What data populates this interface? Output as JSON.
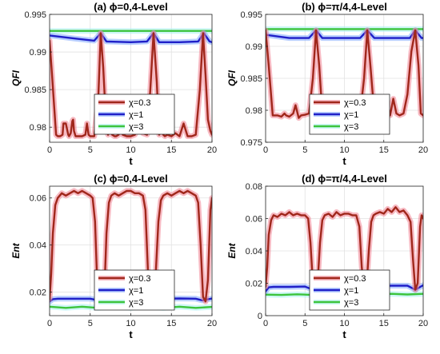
{
  "colors": {
    "chi03": "#a0271b",
    "chi03_glow": "#f08090",
    "chi1": "#1f1fc8",
    "chi1_glow": "#7fa8ff",
    "chi3": "#3cc43c",
    "chi3_glow": "#a8f0f0"
  },
  "chart_data": [
    {
      "type": "line",
      "panel": "a",
      "title": "(a) ϕ=0,4-Level",
      "xlabel": "t",
      "ylabel": "QFI",
      "xlim": [
        0,
        20
      ],
      "ylim": [
        0.978,
        0.995
      ],
      "xticks": [
        0,
        5,
        10,
        15,
        20
      ],
      "yticks": [
        0.98,
        0.985,
        0.99,
        0.995
      ],
      "ytick_labels": [
        "0.98",
        "0.985",
        "0.99",
        "0.995"
      ],
      "grid": true,
      "legend": "lower-center",
      "series": [
        {
          "name": "χ=0.3",
          "key": "chi03",
          "x": [
            0,
            0.3,
            0.8,
            1.0,
            1.3,
            1.6,
            1.7,
            2.0,
            2.3,
            2.4,
            2.6,
            2.8,
            2.9,
            3.0,
            3.2,
            3.5,
            4.0,
            4.4,
            4.6,
            4.8,
            5.0,
            5.5,
            6.0,
            6.3,
            6.6,
            7.0,
            7.2,
            7.5,
            7.7,
            8.0,
            8.2,
            8.5,
            8.7,
            9.0,
            9.5,
            10.0,
            10.5,
            11.0,
            11.5,
            12.0,
            12.4,
            12.8,
            13.2,
            13.5,
            13.7,
            14.0,
            14.2,
            14.5,
            15.0,
            15.5,
            16.0,
            16.5,
            17.0,
            17.5,
            18.0,
            18.5,
            18.9,
            19.2,
            19.5,
            19.8,
            20.0
          ],
          "y": [
            0.9915,
            0.987,
            0.979,
            0.9788,
            0.9788,
            0.979,
            0.9805,
            0.9805,
            0.979,
            0.9788,
            0.9792,
            0.9808,
            0.981,
            0.9795,
            0.9788,
            0.9788,
            0.9788,
            0.979,
            0.9805,
            0.979,
            0.9788,
            0.9788,
            0.984,
            0.9925,
            0.988,
            0.9795,
            0.979,
            0.9805,
            0.979,
            0.9788,
            0.9788,
            0.979,
            0.9812,
            0.979,
            0.9788,
            0.9788,
            0.979,
            0.9805,
            0.9792,
            0.979,
            0.985,
            0.9925,
            0.986,
            0.979,
            0.9805,
            0.979,
            0.9788,
            0.979,
            0.9788,
            0.9792,
            0.9788,
            0.9805,
            0.9788,
            0.9788,
            0.979,
            0.985,
            0.9925,
            0.987,
            0.981,
            0.9795,
            0.979
          ]
        },
        {
          "name": "χ=1",
          "key": "chi1",
          "x": [
            0,
            3,
            5.5,
            6.3,
            7,
            10,
            12,
            12.8,
            13.5,
            16,
            18.3,
            19,
            19.7,
            20
          ],
          "y": [
            0.9922,
            0.9918,
            0.9915,
            0.9925,
            0.9914,
            0.9913,
            0.9914,
            0.9925,
            0.9913,
            0.9913,
            0.9914,
            0.9925,
            0.9914,
            0.9913
          ]
        },
        {
          "name": "χ=3",
          "key": "chi3",
          "x": [
            0,
            5,
            10,
            15,
            20
          ],
          "y": [
            0.9928,
            0.9928,
            0.9928,
            0.9928,
            0.9928
          ]
        }
      ]
    },
    {
      "type": "line",
      "panel": "b",
      "title": "(b) ϕ=π/4,4-Level",
      "xlabel": "t",
      "ylabel": "QFI",
      "xlim": [
        0,
        20
      ],
      "ylim": [
        0.975,
        0.995
      ],
      "xticks": [
        0,
        5,
        10,
        15,
        20
      ],
      "yticks": [
        0.975,
        0.98,
        0.985,
        0.99,
        0.995
      ],
      "ytick_labels": [
        "0.975",
        "0.98",
        "0.985",
        "0.99",
        "0.995"
      ],
      "grid": true,
      "legend": "lower-right",
      "series": [
        {
          "name": "χ=0.3",
          "key": "chi03",
          "x": [
            0,
            0.4,
            0.9,
            1.5,
            2.0,
            2.4,
            2.6,
            3.0,
            3.5,
            3.8,
            4.2,
            4.5,
            5.0,
            5.5,
            6.0,
            6.4,
            6.8,
            7.2,
            7.6,
            8.0,
            8.5,
            9.0,
            9.2,
            9.5,
            10.0,
            10.5,
            11.0,
            11.5,
            12.0,
            12.5,
            12.9,
            13.3,
            13.8,
            14.2,
            14.6,
            15.0,
            15.4,
            15.8,
            16.2,
            16.6,
            17.0,
            17.5,
            18.0,
            18.5,
            19.0,
            19.4,
            19.7,
            20.0
          ],
          "y": [
            0.9925,
            0.987,
            0.9792,
            0.9792,
            0.979,
            0.9795,
            0.9792,
            0.979,
            0.9795,
            0.9808,
            0.9788,
            0.9792,
            0.9793,
            0.9795,
            0.985,
            0.9925,
            0.987,
            0.9795,
            0.9792,
            0.9792,
            0.9805,
            0.9795,
            0.9812,
            0.9795,
            0.9792,
            0.9792,
            0.9808,
            0.9795,
            0.9795,
            0.985,
            0.9925,
            0.987,
            0.9795,
            0.9812,
            0.9792,
            0.9795,
            0.9815,
            0.9792,
            0.9818,
            0.9795,
            0.9792,
            0.9795,
            0.9825,
            0.9892,
            0.9925,
            0.987,
            0.9795,
            0.9792
          ]
        },
        {
          "name": "χ=1",
          "key": "chi1",
          "x": [
            0,
            3,
            5.5,
            6.4,
            7.2,
            10,
            12,
            12.9,
            13.8,
            16,
            18.3,
            19,
            19.8,
            20
          ],
          "y": [
            0.9918,
            0.9913,
            0.9913,
            0.9925,
            0.9913,
            0.9913,
            0.9913,
            0.9925,
            0.9913,
            0.9913,
            0.9913,
            0.9925,
            0.9913,
            0.9913
          ]
        },
        {
          "name": "χ=3",
          "key": "chi3",
          "x": [
            0,
            5,
            10,
            15,
            20
          ],
          "y": [
            0.9927,
            0.9927,
            0.9927,
            0.9927,
            0.9927
          ]
        }
      ]
    },
    {
      "type": "line",
      "panel": "c",
      "title": "(c) ϕ=0,4-Level",
      "xlabel": "t",
      "ylabel": "Ent",
      "xlim": [
        0,
        20
      ],
      "ylim": [
        0.01,
        0.065
      ],
      "xticks": [
        0,
        5,
        10,
        15,
        20
      ],
      "yticks": [
        0.02,
        0.04,
        0.06
      ],
      "ytick_labels": [
        "0.02",
        "0.04",
        "0.06"
      ],
      "grid": true,
      "legend": "lower-right",
      "series": [
        {
          "name": "χ=0.3",
          "key": "chi03",
          "x": [
            0,
            0.2,
            0.4,
            0.7,
            1.0,
            1.5,
            2.0,
            2.5,
            3.0,
            3.5,
            4.0,
            4.5,
            5.0,
            5.3,
            5.6,
            5.9,
            6.2,
            6.5,
            6.8,
            7.0,
            7.3,
            7.6,
            8.0,
            8.5,
            9.0,
            9.5,
            10.0,
            10.5,
            11.0,
            11.5,
            11.8,
            12.1,
            12.4,
            12.8,
            13.1,
            13.4,
            13.7,
            14.0,
            14.5,
            15.0,
            15.5,
            16.0,
            16.5,
            17.0,
            17.5,
            18.0,
            18.3,
            18.6,
            18.9,
            19.2,
            19.5,
            19.8,
            20.0
          ],
          "y": [
            0.017,
            0.028,
            0.045,
            0.057,
            0.06,
            0.062,
            0.061,
            0.062,
            0.063,
            0.062,
            0.063,
            0.062,
            0.061,
            0.06,
            0.05,
            0.02,
            0.016,
            0.017,
            0.025,
            0.045,
            0.058,
            0.061,
            0.062,
            0.061,
            0.062,
            0.063,
            0.063,
            0.062,
            0.062,
            0.061,
            0.055,
            0.03,
            0.017,
            0.016,
            0.03,
            0.05,
            0.059,
            0.061,
            0.062,
            0.061,
            0.062,
            0.063,
            0.062,
            0.063,
            0.062,
            0.061,
            0.058,
            0.04,
            0.018,
            0.016,
            0.025,
            0.055,
            0.06
          ]
        },
        {
          "name": "χ=1",
          "key": "chi1",
          "x": [
            0,
            0.4,
            1,
            3,
            5,
            6,
            6.5,
            8,
            10,
            12,
            12.7,
            14,
            16,
            18,
            18.8,
            20
          ],
          "y": [
            0.016,
            0.017,
            0.0172,
            0.0172,
            0.0172,
            0.0165,
            0.0172,
            0.0172,
            0.0173,
            0.017,
            0.0165,
            0.0172,
            0.0173,
            0.0172,
            0.0165,
            0.0173
          ]
        },
        {
          "name": "χ=3",
          "key": "chi3",
          "x": [
            0,
            2,
            4,
            6,
            8,
            10,
            12,
            14,
            16,
            18,
            20
          ],
          "y": [
            0.0138,
            0.0133,
            0.0138,
            0.0133,
            0.0138,
            0.0133,
            0.0138,
            0.0133,
            0.0138,
            0.0133,
            0.0137
          ]
        }
      ]
    },
    {
      "type": "line",
      "panel": "d",
      "title": "(d) ϕ=π/4,4-Level",
      "xlabel": "t",
      "ylabel": "Ent",
      "xlim": [
        0,
        20
      ],
      "ylim": [
        0,
        0.08
      ],
      "xticks": [
        0,
        5,
        10,
        15,
        20
      ],
      "yticks": [
        0,
        0.02,
        0.04,
        0.06,
        0.08
      ],
      "ytick_labels": [
        "0",
        "0.02",
        "0.04",
        "0.06",
        "0.08"
      ],
      "grid": true,
      "legend": "lower-right",
      "series": [
        {
          "name": "χ=0.3",
          "key": "chi03",
          "x": [
            0,
            0.2,
            0.4,
            0.7,
            1.0,
            1.5,
            2.0,
            2.5,
            3.0,
            3.5,
            4.0,
            4.5,
            5.0,
            5.4,
            5.7,
            6.0,
            6.3,
            6.6,
            6.9,
            7.2,
            7.5,
            8.0,
            8.5,
            9.0,
            9.5,
            10.0,
            10.5,
            11.0,
            11.5,
            11.9,
            12.2,
            12.5,
            12.8,
            13.1,
            13.4,
            13.7,
            14.0,
            14.5,
            15.0,
            15.5,
            16.0,
            16.5,
            17.0,
            17.5,
            18.0,
            18.4,
            18.7,
            19.0,
            19.3,
            19.6,
            19.8,
            20.0
          ],
          "y": [
            0.018,
            0.03,
            0.05,
            0.059,
            0.062,
            0.061,
            0.063,
            0.062,
            0.064,
            0.062,
            0.063,
            0.062,
            0.062,
            0.06,
            0.045,
            0.02,
            0.016,
            0.02,
            0.045,
            0.059,
            0.062,
            0.063,
            0.061,
            0.064,
            0.062,
            0.063,
            0.063,
            0.062,
            0.062,
            0.055,
            0.03,
            0.016,
            0.017,
            0.04,
            0.058,
            0.062,
            0.063,
            0.064,
            0.063,
            0.066,
            0.064,
            0.067,
            0.064,
            0.065,
            0.062,
            0.058,
            0.035,
            0.016,
            0.02,
            0.055,
            0.062,
            0.06
          ]
        },
        {
          "name": "χ=1",
          "key": "chi1",
          "x": [
            0,
            0.4,
            1,
            3,
            5,
            6,
            6.5,
            8,
            10,
            12,
            12.6,
            14,
            16,
            18,
            19,
            20
          ],
          "y": [
            0.015,
            0.0175,
            0.0178,
            0.0178,
            0.018,
            0.016,
            0.018,
            0.0185,
            0.0183,
            0.0185,
            0.016,
            0.0183,
            0.0185,
            0.0185,
            0.016,
            0.0188
          ]
        },
        {
          "name": "χ=3",
          "key": "chi3",
          "x": [
            0,
            2,
            4,
            6,
            8,
            10,
            12,
            14,
            16,
            18,
            20
          ],
          "y": [
            0.013,
            0.0128,
            0.0132,
            0.0128,
            0.0133,
            0.0129,
            0.0134,
            0.013,
            0.0135,
            0.0131,
            0.0135
          ]
        }
      ]
    }
  ]
}
